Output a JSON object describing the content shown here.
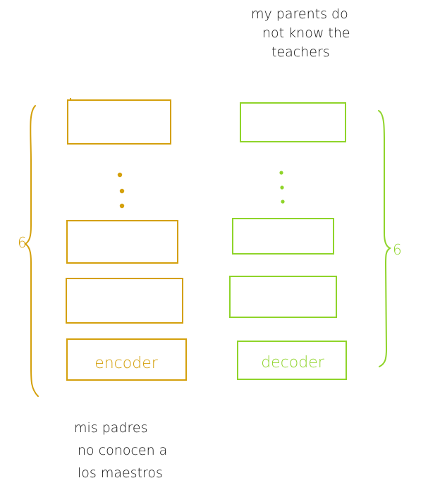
{
  "target_sentence": [
    "my parents do",
    "not know the",
    "teachers"
  ],
  "source_sentence": [
    "mis padres",
    "no conocen a",
    "los maestros"
  ],
  "encoder": {
    "label": "encoder",
    "count": "6",
    "color": "#d4a00c"
  },
  "decoder": {
    "label": "decoder",
    "count": "6",
    "color": "#8fd42a"
  }
}
